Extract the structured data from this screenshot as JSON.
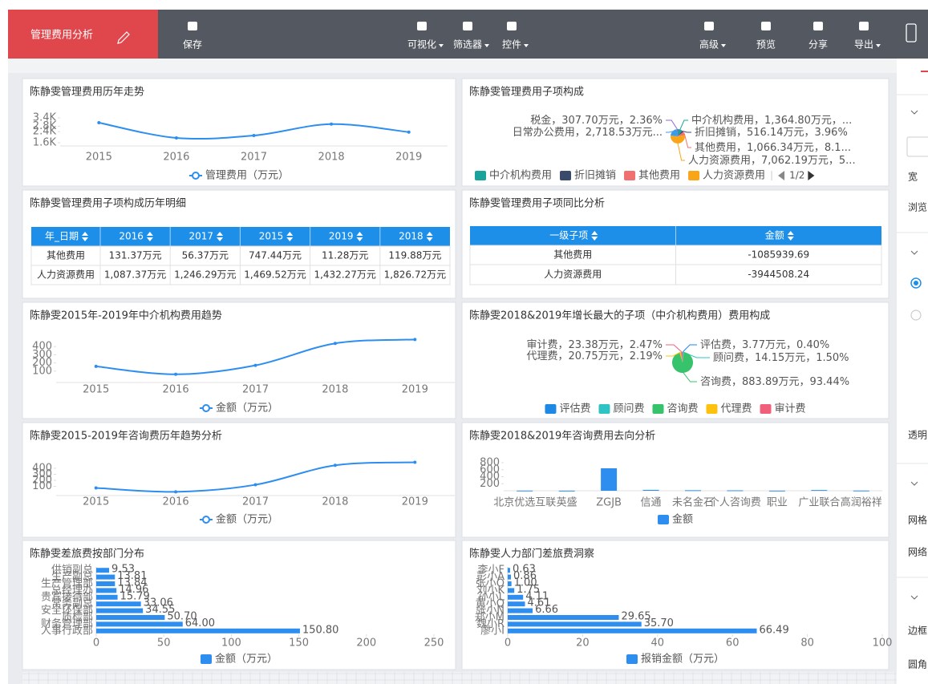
{
  "toolbar": {
    "title": "管理费用分析",
    "buttons": [
      "保存",
      "可视化",
      "筛选器",
      "控件",
      "高级",
      "预览",
      "分享",
      "导出"
    ]
  },
  "panels": [
    {
      "title": "陈静雯管理费用历年走势",
      "chart": {
        "type": "line",
        "categories": [
          "2015",
          "2016",
          "2017",
          "2018",
          "2019"
        ],
        "series": [
          {
            "name": "管理费用（万元）",
            "color": "#2d8ef0",
            "values": [
              3050,
              1950,
              2120,
              2950,
              2370
            ]
          }
        ],
        "ylim": [
          1600,
          3400
        ],
        "yticks": [
          {
            "value": 1600,
            "label": "1.6K"
          },
          {
            "value": 2400,
            "label": "2.4K"
          },
          {
            "value": 2800,
            "label": "2.8K"
          },
          {
            "value": 3400,
            "label": "3.4K"
          }
        ]
      }
    },
    {
      "title": "陈静雯管理费用子项构成",
      "chart": {
        "type": "pie",
        "categories": [
          "中介机构费用",
          "折旧摊销",
          "其他费用",
          "人力资源费用",
          "日常办公费用",
          "税金"
        ],
        "values": [
          1364.8,
          516.14,
          1066.34,
          7062.19,
          2718.53,
          307.7
        ],
        "value_labels": [
          "，1,364.80万元，...",
          "，516.14万元，3.96%",
          "，1,066.34万元，8.1...",
          "，7,062.19万元，5...",
          "，2,718.53万元...",
          "，307.70万元，2.36%"
        ],
        "colors": [
          "#1aa39a",
          "#3a4a6b",
          "#f0706f",
          "#f9a51a",
          "#3a9be8",
          "#8f66d6"
        ],
        "legend_page": "1/2"
      }
    },
    {
      "title": "陈静雯管理费用子项构成历年明细",
      "chart": {
        "type": "table",
        "columns": [
          "年_日期",
          "2016",
          "2017",
          "2015",
          "2019",
          "2018"
        ],
        "rows": [
          [
            "其他费用",
            "131.37万元",
            "56.37万元",
            "747.44万元",
            "11.28万元",
            "119.88万元"
          ],
          [
            "人力资源费用",
            "1,087.37万元",
            "1,246.29万元",
            "1,469.52万元",
            "1,432.27万元",
            "1,826.72万元"
          ]
        ]
      }
    },
    {
      "title": "陈静雯管理费用子项同比分析",
      "chart": {
        "type": "table",
        "columns": [
          "一级子项",
          "金额"
        ],
        "rows": [
          [
            "其他费用",
            "-1085939.69"
          ],
          [
            "人力资源费用",
            "-3944508.24"
          ]
        ]
      }
    },
    {
      "title": "陈静雯2015年-2019年中介机构费用趋势",
      "chart": {
        "type": "line",
        "categories": [
          "2015",
          "2016",
          "2017",
          "2018",
          "2019"
        ],
        "series": [
          {
            "name": "金额（万元）",
            "color": "#2d8ef0",
            "values": [
              158,
              61,
              170,
              439,
              487
            ]
          }
        ],
        "ylim": [
          0,
          500
        ],
        "yticks": [
          100,
          200,
          300,
          400
        ]
      }
    },
    {
      "title": "陈静雯2018&2019年增长最大的子项（中介机构费用）费用构成",
      "chart": {
        "type": "pie",
        "categories": [
          "评估费",
          "顾问费",
          "咨询费",
          "代理费",
          "审计费"
        ],
        "values": [
          3.77,
          14.15,
          883.89,
          20.75,
          23.38
        ],
        "value_labels": [
          "，3.77万元，0.40%",
          "，14.15万元，1.50%",
          "，883.89万元，93.44%",
          "，20.75万元，2.19%",
          "，23.38万元，2.47%"
        ],
        "colors": [
          "#1e88e5",
          "#2ec4c4",
          "#36c36b",
          "#fdc10e",
          "#f0607a"
        ]
      }
    },
    {
      "title": "陈静雯2015-2019年咨询费历年趋势分析",
      "chart": {
        "type": "line",
        "categories": [
          "2015",
          "2016",
          "2017",
          "2018",
          "2019"
        ],
        "series": [
          {
            "name": "金额（万元）",
            "color": "#2d8ef0",
            "values": [
              74,
              9,
              126,
              450,
              500
            ]
          }
        ],
        "ylim": [
          0,
          520
        ],
        "yticks": [
          100,
          200,
          300,
          400
        ]
      }
    },
    {
      "title": "陈静雯2018&2019年咨询费用去向分析",
      "chart": {
        "type": "bar",
        "categories": [
          "北京优选互联",
          "英盛",
          "ZGJB",
          "信通",
          "未名金石",
          "个人咨询费",
          "职业",
          "广业联合",
          "高润裕祥"
        ],
        "series": [
          {
            "name": "金额",
            "color": "#2d8ef0",
            "values": [
              5,
              3,
              640,
              25,
              15,
              12,
              4,
              20,
              6
            ]
          }
        ],
        "ylim": [
          0,
          800
        ],
        "yticks": [
          200,
          400,
          600,
          800
        ]
      }
    },
    {
      "title": "陈静雯差旅费按部门分布",
      "chart": {
        "type": "hbar",
        "categories": [
          "供销副总",
          "生产副总",
          "生产管理部",
          "总经理办",
          "贵宾接待部",
          "常务副总",
          "安全环保部",
          "质检部",
          "财务管理部",
          "人事行政部"
        ],
        "series": [
          {
            "name": "金额（万元）",
            "color": "#2d8ef0",
            "values": [
              9.53,
              13.81,
              13.84,
              14.96,
              15.79,
              33.06,
              34.55,
              50.7,
              64.0,
              150.8
            ],
            "value_labels": [
              "9.53",
              "13.81",
              "13.84",
              "14.96",
              "15.79",
              "33.06",
              "34.55",
              "50.70",
              "64.00",
              "150.80"
            ]
          }
        ],
        "xlim": [
          0,
          250
        ],
        "xticks": [
          0,
          50,
          100,
          150,
          200,
          250
        ]
      }
    },
    {
      "title": "陈静雯人力部门差旅费洞察",
      "chart": {
        "type": "hbar",
        "categories": [
          "李小F",
          "彭小A",
          "张小O",
          "刘小K",
          "孙小L",
          "黄小Q",
          "张小N",
          "郑小M",
          "魏小R",
          "廖小I"
        ],
        "series": [
          {
            "name": "报销金额（万元）",
            "color": "#2d8ef0",
            "values": [
              0.63,
              0.86,
              1.0,
              1.75,
              4.11,
              4.61,
              6.66,
              29.65,
              35.7,
              66.49
            ],
            "value_labels": [
              "0.63",
              "0.86",
              "1.00",
              "1.75",
              "4.11",
              "4.61",
              "6.66",
              "29.65",
              "35.70",
              "66.49"
            ]
          }
        ],
        "xlim": [
          0,
          100
        ],
        "xticks": [
          0,
          20,
          40,
          60,
          80,
          100
        ]
      }
    }
  ],
  "sidebar": {
    "labels": [
      "宽",
      "浏览",
      "透明",
      "网格",
      "网络",
      "边框",
      "圆角"
    ]
  }
}
